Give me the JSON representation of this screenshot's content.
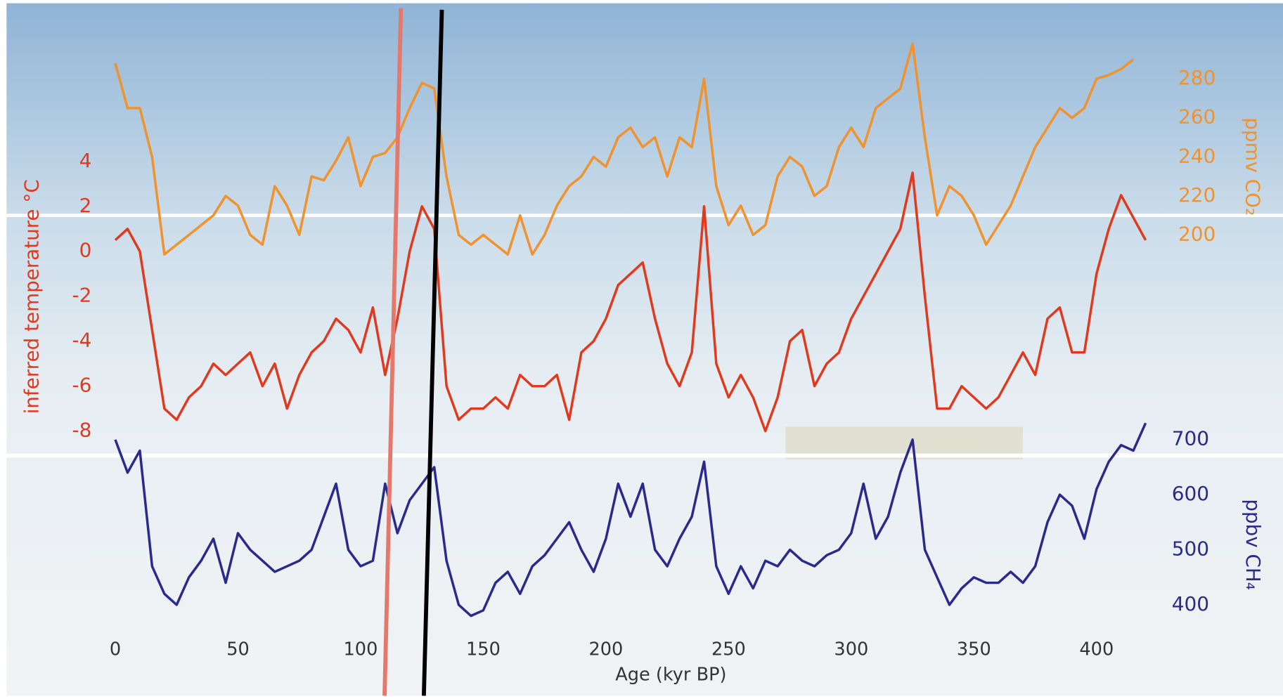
{
  "chart_data": [
    {
      "type": "line",
      "ylabel": "ppmv CO₂",
      "color": "#f0922e",
      "x": [
        0,
        5,
        10,
        15,
        20,
        25,
        30,
        35,
        40,
        45,
        50,
        55,
        60,
        65,
        70,
        75,
        80,
        85,
        90,
        95,
        100,
        105,
        110,
        115,
        120,
        125,
        130,
        135,
        140,
        145,
        150,
        155,
        160,
        165,
        170,
        175,
        180,
        185,
        190,
        195,
        200,
        205,
        210,
        215,
        220,
        225,
        230,
        235,
        240,
        245,
        250,
        255,
        260,
        265,
        270,
        275,
        280,
        285,
        290,
        295,
        300,
        305,
        310,
        315,
        320,
        325,
        330,
        335,
        340,
        345,
        350,
        355,
        360,
        365,
        370,
        375,
        380,
        385,
        390,
        395,
        400,
        405,
        410,
        415,
        420
      ],
      "ylim": [
        180,
        300
      ],
      "yticks": [
        200,
        220,
        240,
        260,
        280
      ],
      "series": [
        {
          "color": "#f0922e",
          "values": [
            288,
            265,
            265,
            240,
            190,
            195,
            200,
            205,
            210,
            220,
            215,
            200,
            195,
            225,
            215,
            200,
            230,
            228,
            238,
            250,
            225,
            240,
            242,
            250,
            265,
            278,
            275,
            230,
            200,
            195,
            200,
            195,
            190,
            210,
            190,
            200,
            215,
            225,
            230,
            240,
            235,
            250,
            255,
            245,
            250,
            230,
            250,
            245,
            280,
            225,
            205,
            215,
            200,
            205,
            230,
            240,
            235,
            220,
            225,
            245,
            255,
            245,
            265,
            270,
            275,
            298,
            250,
            210,
            225,
            220,
            210,
            195,
            205,
            215,
            230,
            245,
            255,
            265,
            260,
            265,
            280,
            282,
            285,
            290,
            null
          ]
        }
      ]
    },
    {
      "type": "line",
      "ylabel": "inferred temperature °C",
      "color": "#e03a1e",
      "x": [
        0,
        5,
        10,
        15,
        20,
        25,
        30,
        35,
        40,
        45,
        50,
        55,
        60,
        65,
        70,
        75,
        80,
        85,
        90,
        95,
        100,
        105,
        110,
        115,
        120,
        125,
        130,
        135,
        140,
        145,
        150,
        155,
        160,
        165,
        170,
        175,
        180,
        185,
        190,
        195,
        200,
        205,
        210,
        215,
        220,
        225,
        230,
        235,
        240,
        245,
        250,
        255,
        260,
        265,
        270,
        275,
        280,
        285,
        290,
        295,
        300,
        305,
        310,
        315,
        320,
        325,
        330,
        335,
        340,
        345,
        350,
        355,
        360,
        365,
        370,
        375,
        380,
        385,
        390,
        395,
        400,
        405,
        410,
        415,
        420
      ],
      "ylim": [
        -9,
        5
      ],
      "yticks": [
        4,
        2,
        0,
        -2,
        -4,
        -6,
        -8
      ],
      "series": [
        {
          "color": "#e03a1e",
          "values": [
            0.5,
            1,
            0,
            -3.5,
            -7,
            -7.5,
            -6.5,
            -6,
            -5,
            -5.5,
            -5,
            -4.5,
            -6,
            -5,
            -7,
            -5.5,
            -4.5,
            -4,
            -3,
            -3.5,
            -4.5,
            -2.5,
            -5.5,
            -3,
            0,
            2,
            1,
            -6,
            -7.5,
            -7,
            -7,
            -6.5,
            -7,
            -5.5,
            -6,
            -6,
            -5.5,
            -7.5,
            -4.5,
            -4,
            -3,
            -1.5,
            -1,
            -0.5,
            -3,
            -5,
            -6,
            -4.5,
            2,
            -5,
            -6.5,
            -5.5,
            -6.5,
            -8,
            -6.5,
            -4,
            -3.5,
            -6,
            -5,
            -4.5,
            -3,
            -2,
            -1,
            0,
            1,
            3.5,
            -2,
            -7,
            -7,
            -6,
            -6.5,
            -7,
            -6.5,
            -5.5,
            -4.5,
            -5.5,
            -3,
            -2.5,
            -4.5,
            -4.5,
            -1,
            1,
            2.5,
            1.5,
            0.5
          ]
        }
      ]
    },
    {
      "type": "line",
      "ylabel": "ppbv CH₄",
      "color": "#2a2a8c",
      "xlabel": "Age (kyr BP)",
      "x": [
        0,
        5,
        10,
        15,
        20,
        25,
        30,
        35,
        40,
        45,
        50,
        55,
        60,
        65,
        70,
        75,
        80,
        85,
        90,
        95,
        100,
        105,
        110,
        115,
        120,
        125,
        130,
        135,
        140,
        145,
        150,
        155,
        160,
        165,
        170,
        175,
        180,
        185,
        190,
        195,
        200,
        205,
        210,
        215,
        220,
        225,
        230,
        235,
        240,
        245,
        250,
        255,
        260,
        265,
        270,
        275,
        280,
        285,
        290,
        295,
        300,
        305,
        310,
        315,
        320,
        325,
        330,
        335,
        340,
        345,
        350,
        355,
        360,
        365,
        370,
        375,
        380,
        385,
        390,
        395,
        400,
        405,
        410,
        415,
        420
      ],
      "xlim": [
        -47,
        476
      ],
      "xticks": [
        0,
        50,
        100,
        150,
        200,
        250,
        300,
        350,
        400
      ],
      "ylim": [
        350,
        750
      ],
      "yticks": [
        400,
        500,
        600,
        700
      ],
      "series": [
        {
          "color": "#2a2a8c",
          "values": [
            700,
            640,
            680,
            470,
            420,
            400,
            450,
            480,
            520,
            440,
            530,
            500,
            480,
            460,
            470,
            480,
            500,
            560,
            620,
            500,
            470,
            480,
            620,
            530,
            590,
            620,
            650,
            480,
            400,
            380,
            390,
            440,
            460,
            420,
            470,
            490,
            520,
            550,
            500,
            460,
            520,
            620,
            560,
            620,
            500,
            470,
            520,
            560,
            660,
            470,
            420,
            470,
            430,
            480,
            470,
            500,
            480,
            470,
            490,
            500,
            530,
            620,
            520,
            560,
            640,
            700,
            500,
            450,
            400,
            430,
            450,
            440,
            440,
            460,
            440,
            470,
            550,
            600,
            580,
            520,
            610,
            660,
            690,
            680,
            730
          ]
        }
      ]
    }
  ]
}
